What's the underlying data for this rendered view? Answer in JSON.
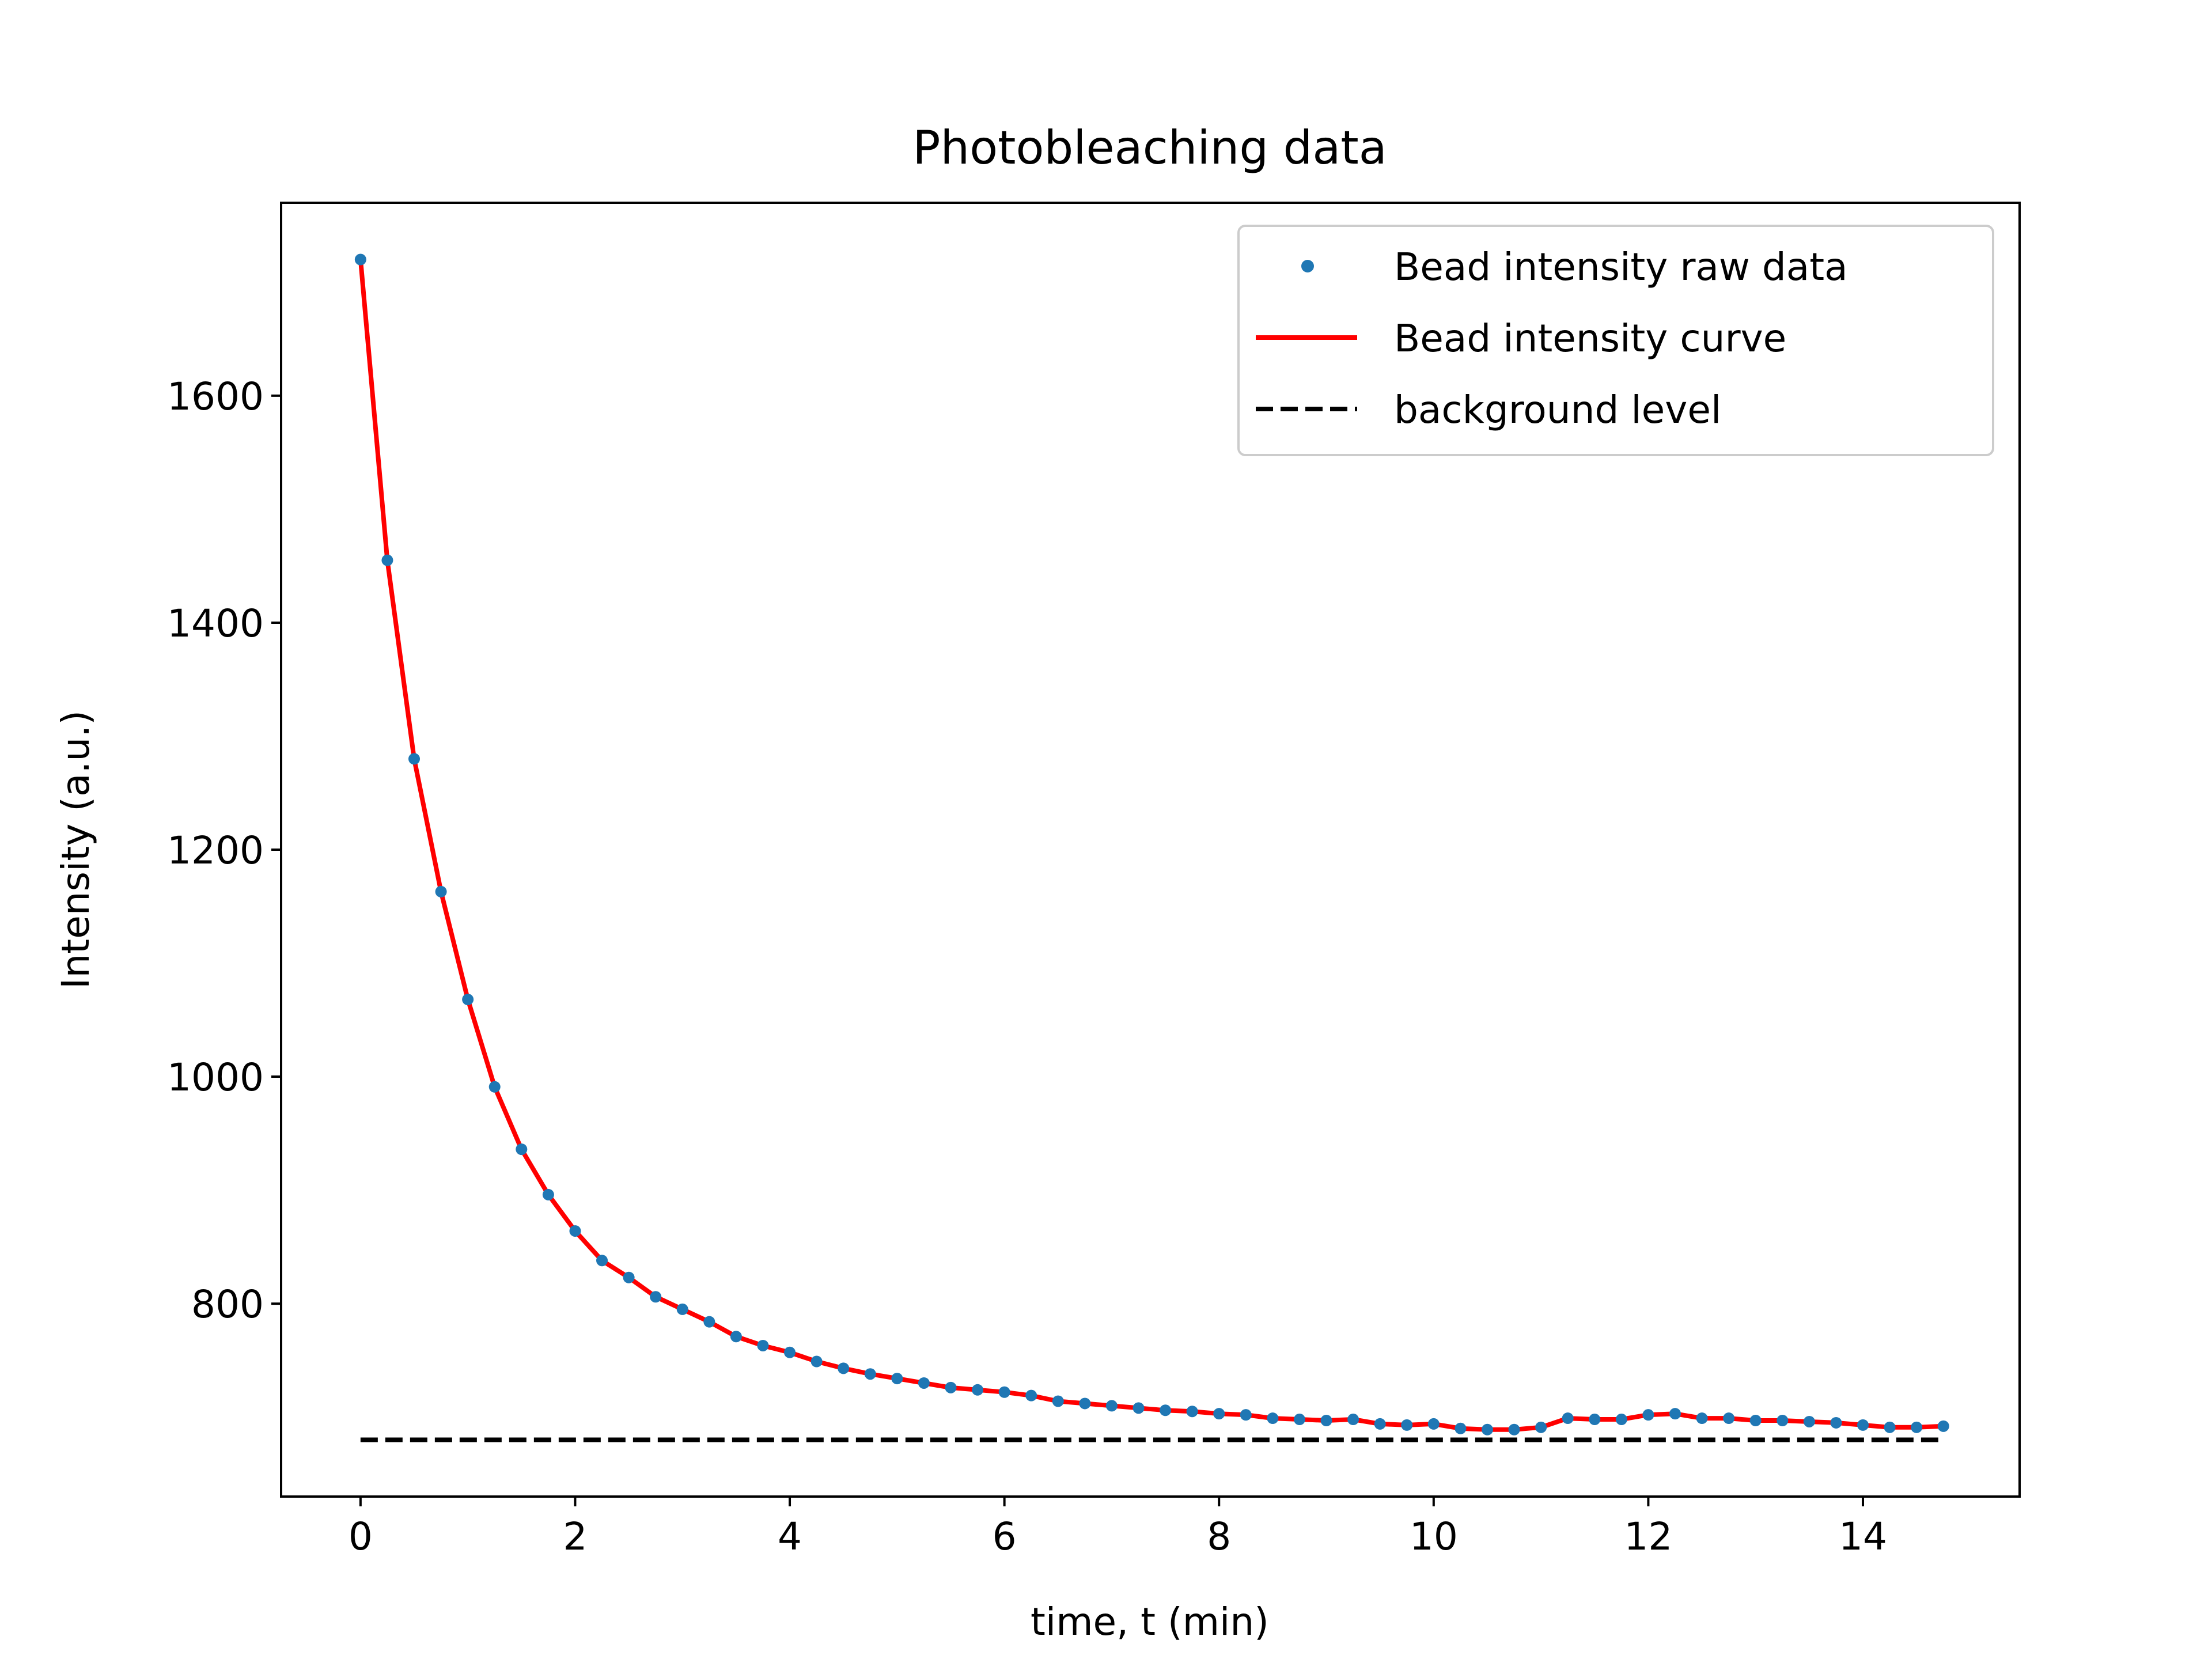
{
  "chart_data": {
    "type": "line",
    "title": "Photobleaching data",
    "xlabel": "time, t (min)",
    "ylabel": "Intensity (a.u.)",
    "xlim": [
      -0.74,
      15.46
    ],
    "ylim": [
      630,
      1770
    ],
    "xticks": [
      0,
      2,
      4,
      6,
      8,
      10,
      12,
      14
    ],
    "yticks": [
      800,
      1000,
      1200,
      1400,
      1600
    ],
    "grid": false,
    "legend_position": "top-right",
    "colors": {
      "raw": "#1f77b4",
      "curve": "#ff0000",
      "background": "#000000"
    },
    "series": [
      {
        "name": "Bead intensity raw data",
        "style": "markers",
        "x": [
          0,
          0.25,
          0.5,
          0.75,
          1.0,
          1.25,
          1.5,
          1.75,
          2.0,
          2.25,
          2.5,
          2.75,
          3.0,
          3.25,
          3.5,
          3.75,
          4.0,
          4.25,
          4.5,
          4.75,
          5.0,
          5.25,
          5.5,
          5.75,
          6.0,
          6.25,
          6.5,
          6.75,
          7.0,
          7.25,
          7.5,
          7.75,
          8.0,
          8.25,
          8.5,
          8.75,
          9.0,
          9.25,
          9.5,
          9.75,
          10.0,
          10.25,
          10.5,
          10.75,
          11.0,
          11.25,
          11.5,
          11.75,
          12.0,
          12.25,
          12.5,
          12.75,
          13.0,
          13.25,
          13.5,
          13.75,
          14.0,
          14.25,
          14.5,
          14.75
        ],
        "y": [
          1720,
          1455,
          1280,
          1163,
          1068,
          991,
          936,
          896,
          864,
          838,
          823,
          806,
          795,
          784,
          771,
          763,
          757,
          749,
          743,
          738,
          734,
          730,
          726,
          724,
          722,
          719,
          714,
          712,
          710,
          708,
          706,
          705,
          703,
          702,
          699,
          698,
          697,
          698,
          694,
          693,
          694,
          690,
          689,
          689,
          691,
          699,
          698,
          698,
          702,
          703,
          699,
          699,
          697,
          697,
          696,
          695,
          693,
          691,
          691,
          692
        ]
      },
      {
        "name": "Bead intensity curve",
        "style": "line",
        "x": [
          0,
          0.25,
          0.5,
          0.75,
          1.0,
          1.25,
          1.5,
          1.75,
          2.0,
          2.25,
          2.5,
          2.75,
          3.0,
          3.25,
          3.5,
          3.75,
          4.0,
          4.25,
          4.5,
          4.75,
          5.0,
          5.25,
          5.5,
          5.75,
          6.0,
          6.25,
          6.5,
          6.75,
          7.0,
          7.25,
          7.5,
          7.75,
          8.0,
          8.25,
          8.5,
          8.75,
          9.0,
          9.25,
          9.5,
          9.75,
          10.0,
          10.25,
          10.5,
          10.75,
          11.0,
          11.25,
          11.5,
          11.75,
          12.0,
          12.25,
          12.5,
          12.75,
          13.0,
          13.25,
          13.5,
          13.75,
          14.0,
          14.25,
          14.5,
          14.75
        ],
        "y": [
          1720,
          1455,
          1280,
          1163,
          1068,
          991,
          936,
          896,
          864,
          838,
          823,
          806,
          795,
          784,
          771,
          763,
          757,
          749,
          743,
          738,
          734,
          730,
          726,
          724,
          722,
          719,
          714,
          712,
          710,
          708,
          706,
          705,
          703,
          702,
          699,
          698,
          697,
          698,
          694,
          693,
          694,
          690,
          689,
          689,
          691,
          699,
          698,
          698,
          702,
          703,
          699,
          699,
          697,
          697,
          696,
          695,
          693,
          691,
          691,
          692
        ]
      },
      {
        "name": "background level",
        "style": "dashed",
        "x": [
          0,
          14.75
        ],
        "y": [
          680,
          680
        ]
      }
    ]
  }
}
